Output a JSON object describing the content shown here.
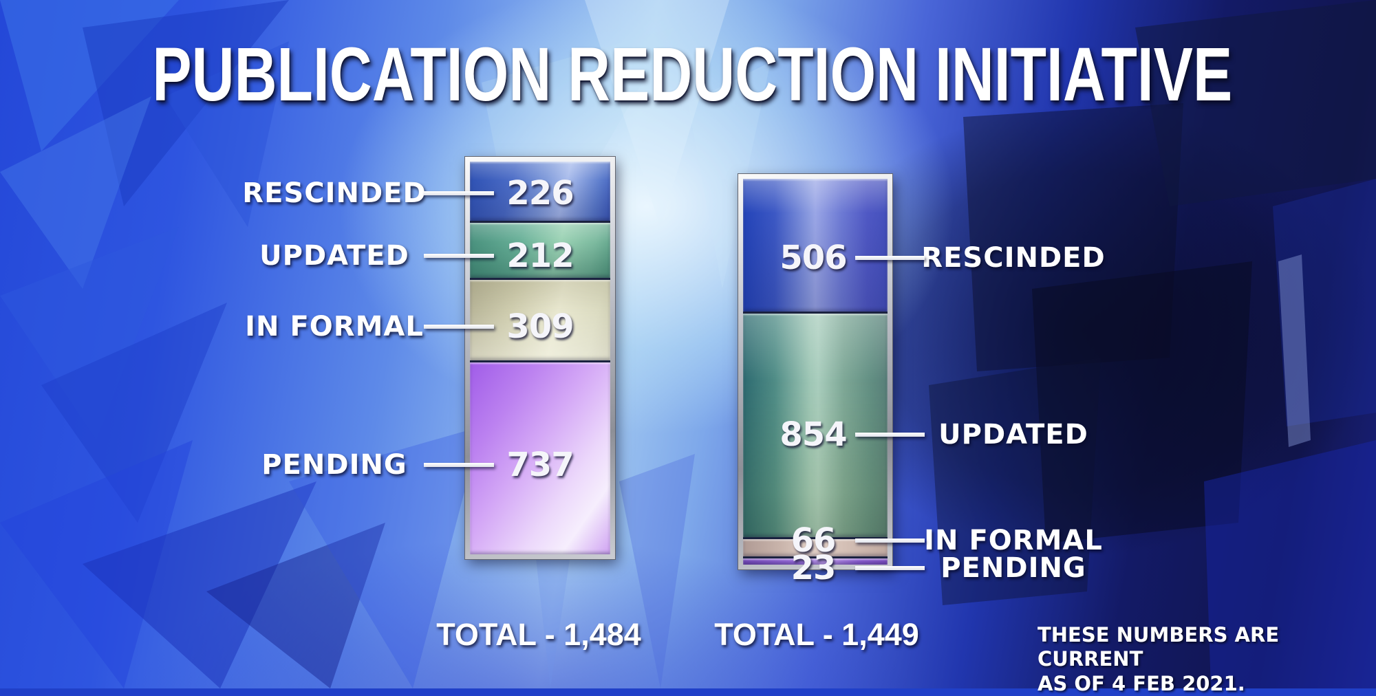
{
  "page": {
    "title": "PUBLICATION REDUCTION INITIATIVE"
  },
  "note": {
    "line1": "THESE NUMBERS ARE CURRENT",
    "line2": "AS OF 4 FEB 2021."
  },
  "chart_data": [
    {
      "type": "bar",
      "subtype": "stacked-vertical-column",
      "position": "left",
      "categories": [
        "RESCINDED",
        "UPDATED",
        "IN FORMAL",
        "PENDING"
      ],
      "values": [
        226,
        212,
        309,
        737
      ],
      "total": 1484,
      "total_label": "TOTAL - 1,484",
      "label_side": "left",
      "segment_colors": [
        "#3a5fc0",
        "#64ad94",
        "#d6d4b6",
        "#c490ee"
      ]
    },
    {
      "type": "bar",
      "subtype": "stacked-vertical-column",
      "position": "right",
      "categories": [
        "RESCINDED",
        "UPDATED",
        "IN FORMAL",
        "PENDING"
      ],
      "values": [
        506,
        854,
        66,
        23
      ],
      "total": 1449,
      "total_label": "TOTAL - 1,449",
      "label_side": "right",
      "segment_colors": [
        "#4d62cc",
        "#6f9e92",
        "#d2beb4",
        "#9064cc"
      ]
    }
  ],
  "style_colors": {
    "background_blue": "#2448d8",
    "highlight_cyan": "#cfe8fa",
    "dark_navy": "#10154f",
    "frame_silver": "#c9ccd4",
    "text": "#ffffff"
  }
}
